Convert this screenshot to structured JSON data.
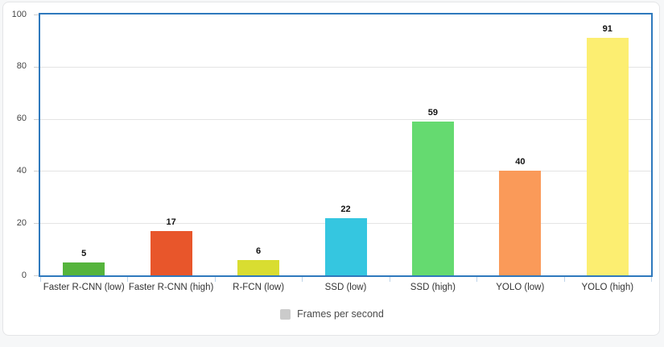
{
  "chart_data": {
    "type": "bar",
    "title": "",
    "categories": [
      "Faster R-CNN (low)",
      "Faster R-CNN (high)",
      "R-FCN (low)",
      "SSD (low)",
      "SSD (high)",
      "YOLO (low)",
      "YOLO (high)"
    ],
    "values": [
      5,
      17,
      6,
      22,
      59,
      40,
      91
    ],
    "value_labels": [
      "5",
      "17",
      "6",
      "22",
      "59",
      "40",
      "91"
    ],
    "bar_colors": [
      "#55b43c",
      "#e8562b",
      "#d9dd31",
      "#35c6e0",
      "#65da70",
      "#fa9a59",
      "#fcee71"
    ],
    "xlabel": "",
    "ylabel": "",
    "ylim": [
      0,
      100
    ],
    "yticks": [
      0,
      20,
      40,
      60,
      80,
      100
    ],
    "ytick_labels": [
      "0",
      "20",
      "40",
      "60",
      "80",
      "100"
    ],
    "grid": true,
    "legend_position": "bottom",
    "legend": "Frames per second",
    "legend_swatch_color": "#cbcbcb"
  },
  "colors": {
    "plot_border": "#2f79bd",
    "gridline": "#e4e4e4",
    "y_tick": "#cfcfcf",
    "x_tick": "#bdd3e8",
    "card_background": "#ffffff",
    "card_border": "#e4e5e7",
    "page_background": "#f6f7f8",
    "value_label_text": "#111111",
    "axis_label_text": "#444444",
    "category_label_text": "#333333",
    "legend_text": "#4a4a4a"
  }
}
